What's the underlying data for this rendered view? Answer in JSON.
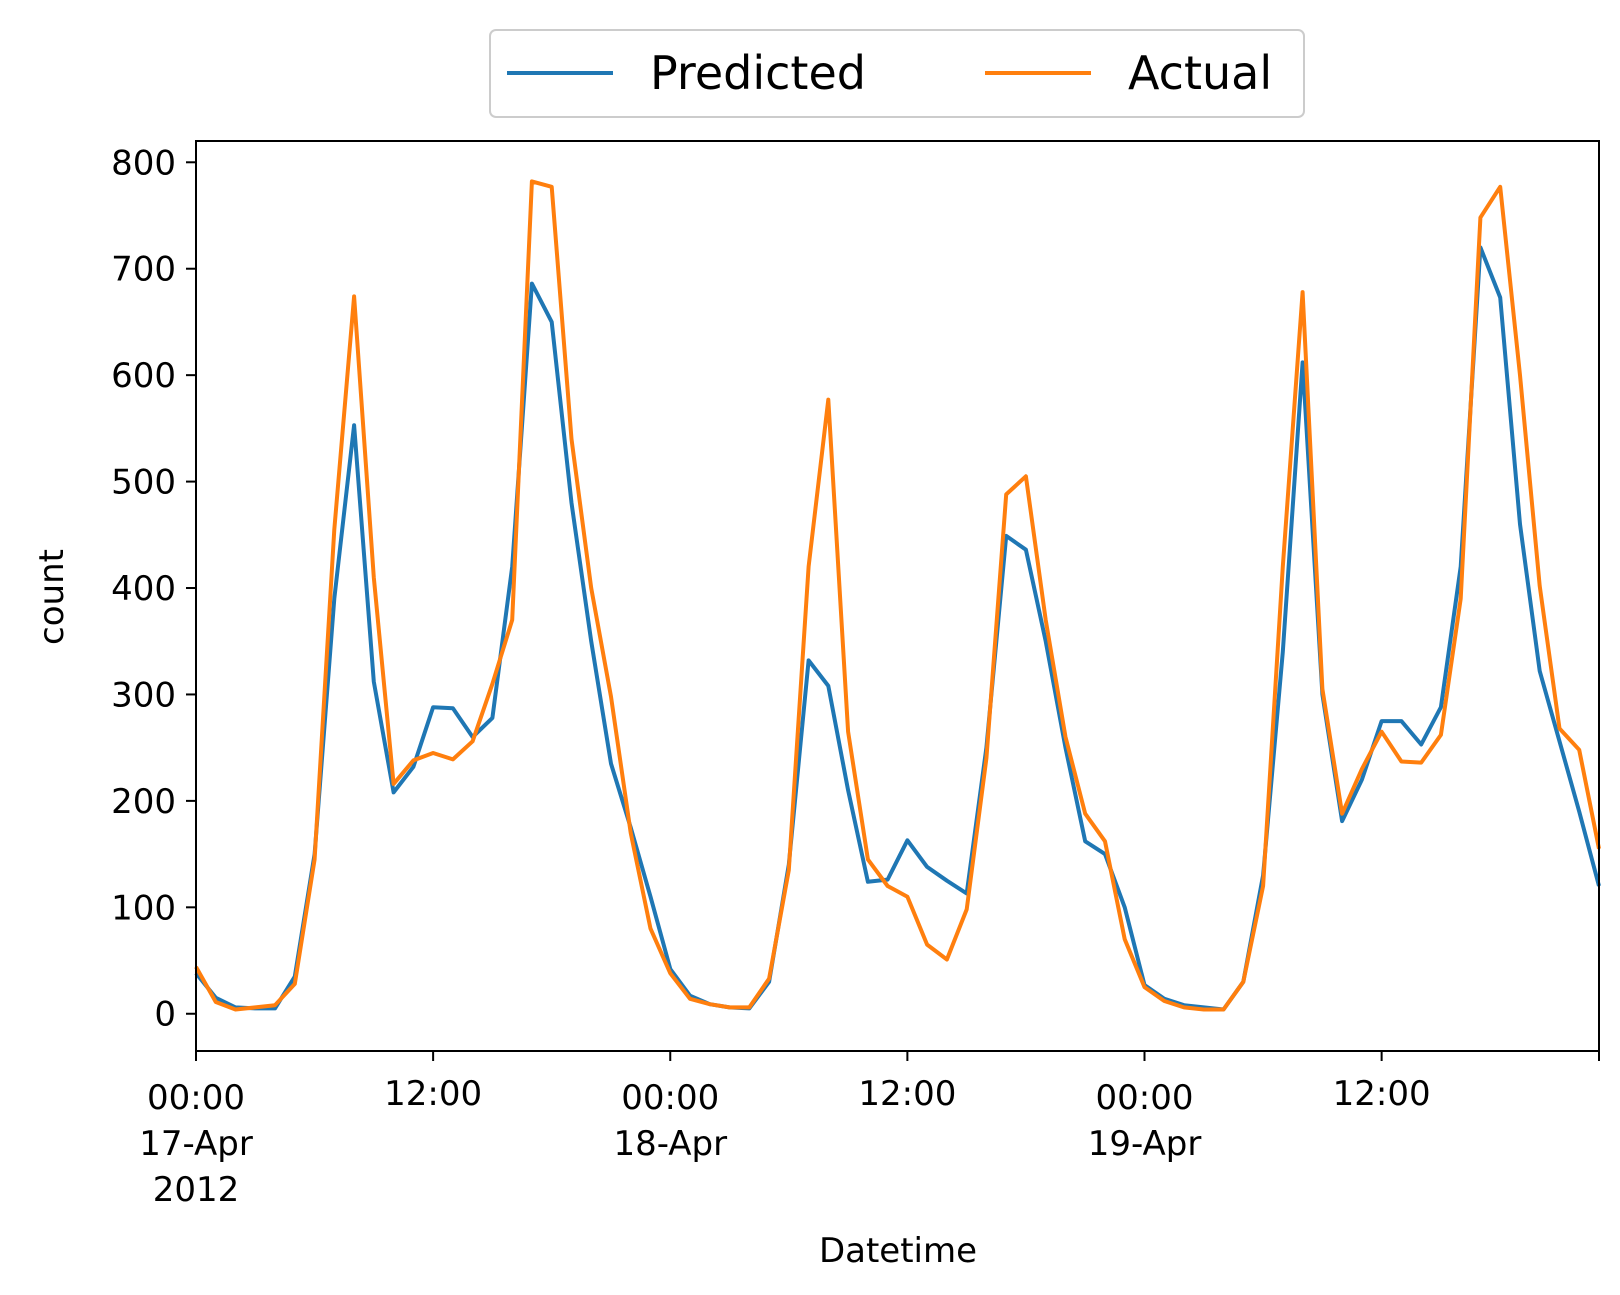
{
  "chart_data": {
    "type": "line",
    "xlabel": "Datetime",
    "ylabel": "count",
    "x_start": "2012-04-17 00:00",
    "x_end": "2012-04-19 23:00",
    "x_step": "1 hour",
    "ylim": [
      -35,
      820
    ],
    "yticks": [
      0,
      100,
      200,
      300,
      400,
      500,
      600,
      700,
      800
    ],
    "xticks": [
      {
        "time": "2012-04-17 00:00",
        "lines": [
          "00:00",
          "17-Apr",
          "2012"
        ]
      },
      {
        "time": "2012-04-17 12:00",
        "lines": [
          "12:00"
        ]
      },
      {
        "time": "2012-04-18 00:00",
        "lines": [
          "00:00",
          "18-Apr"
        ]
      },
      {
        "time": "2012-04-18 12:00",
        "lines": [
          "12:00"
        ]
      },
      {
        "time": "2012-04-19 00:00",
        "lines": [
          "00:00",
          "19-Apr"
        ]
      },
      {
        "time": "2012-04-19 12:00",
        "lines": [
          "12:00"
        ]
      }
    ],
    "legend_position": "top-center-outside",
    "grid": false,
    "series": [
      {
        "name": "Predicted",
        "color": "#1f77b4",
        "values": [
          38,
          15,
          6,
          5,
          5,
          35,
          150,
          390,
          553,
          312,
          208,
          232,
          288,
          287,
          260,
          278,
          420,
          686,
          650,
          480,
          350,
          235,
          175,
          110,
          42,
          17,
          9,
          6,
          5,
          30,
          140,
          332,
          308,
          210,
          124,
          126,
          163,
          138,
          125,
          113,
          250,
          449,
          436,
          350,
          250,
          162,
          150,
          100,
          27,
          14,
          8,
          6,
          4,
          30,
          130,
          340,
          612,
          300,
          181,
          220,
          275,
          275,
          253,
          288,
          420,
          720,
          673,
          460,
          322,
          256,
          190,
          120
        ]
      },
      {
        "name": "Actual",
        "color": "#ff7f0e",
        "values": [
          44,
          11,
          4,
          6,
          8,
          28,
          145,
          455,
          674,
          410,
          216,
          238,
          245,
          239,
          256,
          310,
          370,
          782,
          777,
          540,
          400,
          298,
          170,
          80,
          38,
          14,
          9,
          6,
          6,
          33,
          135,
          420,
          577,
          265,
          145,
          120,
          110,
          65,
          51,
          98,
          240,
          488,
          505,
          370,
          260,
          188,
          162,
          70,
          25,
          12,
          6,
          4,
          4,
          30,
          120,
          420,
          678,
          305,
          188,
          230,
          265,
          237,
          236,
          262,
          390,
          748,
          777,
          600,
          402,
          268,
          248,
          155
        ]
      }
    ]
  }
}
